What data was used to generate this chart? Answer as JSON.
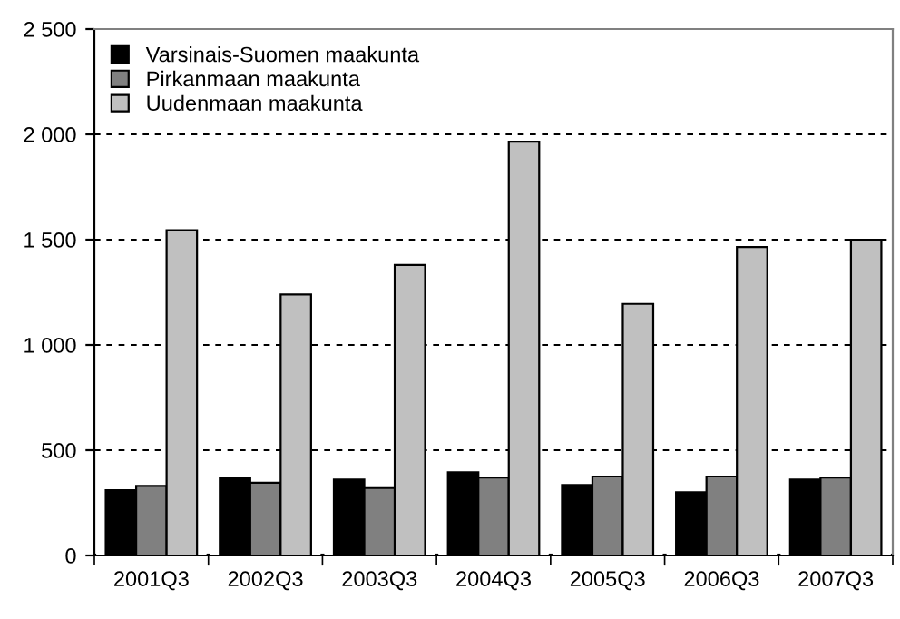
{
  "chart_data": {
    "type": "bar",
    "categories": [
      "2001Q3",
      "2002Q3",
      "2003Q3",
      "2004Q3",
      "2005Q3",
      "2006Q3",
      "2007Q3"
    ],
    "series": [
      {
        "name": "Varsinais-Suomen maakunta",
        "color": "#000000",
        "values": [
          310,
          370,
          360,
          395,
          335,
          300,
          360
        ]
      },
      {
        "name": "Pirkanmaan maakunta",
        "color": "#808080",
        "values": [
          330,
          345,
          320,
          370,
          375,
          375,
          370
        ]
      },
      {
        "name": "Uudenmaan maakunta",
        "color": "#c0c0c0",
        "values": [
          1545,
          1240,
          1380,
          1965,
          1195,
          1465,
          1500
        ]
      }
    ],
    "ylim": [
      0,
      2500
    ],
    "yticks": [
      0,
      500,
      {
        "value": 1000,
        "label": "1 000"
      },
      {
        "value": 1500,
        "label": "1 500"
      },
      {
        "value": 2000,
        "label": "2 000"
      },
      {
        "value": 2500,
        "label": "2 500"
      }
    ],
    "grid": "y",
    "line_style": "dashed",
    "legend": "top left"
  }
}
